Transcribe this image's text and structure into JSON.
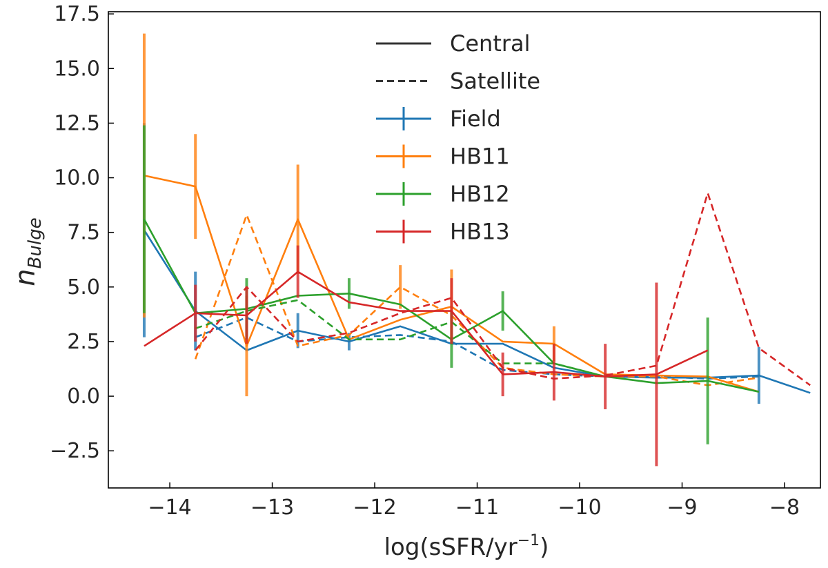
{
  "chart_data": {
    "type": "line",
    "title": "",
    "xlabel": "log(sSFR/yr",
    "xlabel_sup": "−1",
    "xlabel_close": ")",
    "ylabel_main": "n",
    "ylabel_sub": "Bulge",
    "xlim": [
      -14.6,
      -7.65
    ],
    "ylim": [
      -4.2,
      17.6
    ],
    "xticks": [
      {
        "value": -14,
        "label": "−14"
      },
      {
        "value": -13,
        "label": "−13"
      },
      {
        "value": -12,
        "label": "−12"
      },
      {
        "value": -11,
        "label": "−11"
      },
      {
        "value": -10,
        "label": "−10"
      },
      {
        "value": -9,
        "label": "−9"
      },
      {
        "value": -8,
        "label": "−8"
      }
    ],
    "yticks": [
      {
        "value": -2.5,
        "label": "−2.5"
      },
      {
        "value": 0.0,
        "label": "0.0"
      },
      {
        "value": 2.5,
        "label": "2.5"
      },
      {
        "value": 5.0,
        "label": "5.0"
      },
      {
        "value": 7.5,
        "label": "7.5"
      },
      {
        "value": 10.0,
        "label": "10.0"
      },
      {
        "value": 12.5,
        "label": "12.5"
      },
      {
        "value": 15.0,
        "label": "15.0"
      },
      {
        "value": 17.5,
        "label": "17.5"
      }
    ],
    "legend": {
      "location": "top-center",
      "style_entries": [
        {
          "label": "Central",
          "dash": "solid"
        },
        {
          "label": "Satellite",
          "dash": "dashed"
        }
      ]
    },
    "series": [
      {
        "name": "Field",
        "color": "#1f77b4",
        "in_legend": true,
        "central": {
          "x": [
            -14.25,
            -13.75,
            -13.25,
            -12.75,
            -12.25,
            -11.75,
            -11.25,
            -10.75,
            -10.25,
            -9.75,
            -9.25,
            -8.75,
            -8.25,
            -7.75
          ],
          "y": [
            7.6,
            3.9,
            2.1,
            3.0,
            2.5,
            3.2,
            2.4,
            2.4,
            1.3,
            0.9,
            0.85,
            0.85,
            0.95,
            0.15
          ],
          "err": [
            4.9,
            1.8,
            0,
            0.8,
            0.4,
            0,
            0,
            0,
            0,
            0,
            0,
            0,
            1.3,
            0
          ]
        },
        "satellite": {
          "x": [
            -13.75,
            -13.25,
            -12.75,
            -12.25,
            -11.75,
            -11.25,
            -10.75,
            -10.25,
            -9.75,
            -9.25,
            -8.75,
            -8.25
          ],
          "y": [
            2.7,
            3.6,
            2.5,
            2.7,
            2.8,
            2.5,
            1.2,
            1.0,
            0.9,
            0.9,
            0.8,
            0.9
          ],
          "err": []
        }
      },
      {
        "name": "HB11",
        "color": "#ff7f0e",
        "in_legend": true,
        "central": {
          "x": [
            -14.25,
            -13.75,
            -13.25,
            -12.75,
            -12.25,
            -11.75,
            -11.25,
            -10.75,
            -10.25,
            -9.75,
            -9.25,
            -8.75,
            -8.25
          ],
          "y": [
            10.1,
            9.6,
            2.3,
            8.1,
            2.6,
            3.5,
            4.1,
            2.5,
            2.4,
            1.0,
            0.95,
            0.9,
            0.2
          ],
          "err": [
            6.5,
            2.4,
            2.3,
            2.5,
            0,
            0,
            1.7,
            0,
            0.8,
            0,
            0,
            0,
            0
          ]
        },
        "satellite": {
          "x": [
            -13.75,
            -13.25,
            -12.75,
            -12.25,
            -11.75,
            -11.25,
            -10.75,
            -10.25,
            -9.75,
            -9.25,
            -8.75,
            -8.25
          ],
          "y": [
            1.7,
            8.3,
            2.3,
            2.8,
            5.0,
            3.7,
            1.3,
            1.0,
            0.9,
            0.9,
            0.5,
            0.85
          ],
          "err": [
            0,
            0,
            0,
            0,
            1.0,
            0,
            0,
            0,
            0,
            0,
            0,
            0
          ]
        }
      },
      {
        "name": "HB12",
        "color": "#2ca02c",
        "in_legend": true,
        "central": {
          "x": [
            -14.25,
            -13.75,
            -13.25,
            -12.75,
            -12.25,
            -11.75,
            -11.25,
            -10.75,
            -10.25,
            -9.75,
            -9.25,
            -8.75,
            -8.25
          ],
          "y": [
            8.1,
            3.8,
            4.0,
            4.6,
            4.7,
            4.2,
            2.6,
            3.9,
            1.5,
            0.9,
            0.6,
            0.7,
            0.2
          ],
          "err": [
            4.3,
            0,
            1.4,
            0,
            0.7,
            0,
            1.3,
            0.9,
            0,
            0,
            0,
            2.9,
            0
          ]
        },
        "satellite": {
          "x": [
            -13.75,
            -13.25,
            -12.75,
            -12.25,
            -11.75,
            -11.25,
            -10.75,
            -10.25,
            -9.75
          ],
          "y": [
            3.1,
            3.9,
            4.4,
            2.6,
            2.6,
            3.4,
            1.5,
            1.5,
            0.9
          ],
          "err": []
        }
      },
      {
        "name": "HB13",
        "color": "#d62728",
        "in_legend": true,
        "central": {
          "x": [
            -14.25,
            -13.75,
            -13.25,
            -12.75,
            -12.25,
            -11.75,
            -11.25,
            -10.75,
            -10.25,
            -9.75,
            -9.25,
            -8.75
          ],
          "y": [
            2.3,
            3.8,
            3.7,
            5.7,
            4.3,
            3.9,
            3.9,
            1.0,
            1.1,
            0.9,
            1.0,
            2.1
          ],
          "err": [
            0,
            1.3,
            1.3,
            1.2,
            0,
            0,
            1.5,
            1.0,
            1.3,
            1.5,
            4.2,
            0
          ]
        },
        "satellite": {
          "x": [
            -13.75,
            -13.25,
            -12.75,
            -12.25,
            -11.75,
            -11.25,
            -10.75,
            -10.25,
            -9.75,
            -9.25,
            -8.75,
            -8.25,
            -7.75
          ],
          "y": [
            2.1,
            5.0,
            2.5,
            2.9,
            3.8,
            4.5,
            1.3,
            0.8,
            0.95,
            1.4,
            9.3,
            2.2,
            0.5
          ],
          "err": []
        }
      }
    ]
  }
}
